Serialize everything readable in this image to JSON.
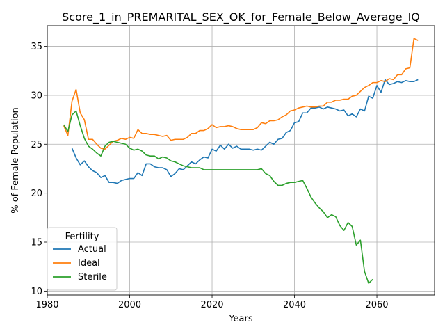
{
  "chart_data": {
    "type": "line",
    "title": "Score_1_in_PREMARITAL_SEX_OK_for_Female_Below_Average_IQ",
    "xlabel": "Years",
    "ylabel": "% of Female Population",
    "xlim": [
      1980,
      2074
    ],
    "ylim": [
      9.6,
      37.1
    ],
    "xticks": [
      1980,
      2000,
      2020,
      2040,
      2060
    ],
    "yticks": [
      10,
      15,
      20,
      25,
      30,
      35
    ],
    "grid": true,
    "legend": {
      "title": "Fertility",
      "placement": "lower-left"
    },
    "series": [
      {
        "name": "Actual",
        "color": "#1f77b4",
        "points": [
          [
            1986,
            24.6
          ],
          [
            1987,
            23.6
          ],
          [
            1988,
            22.9
          ],
          [
            1989,
            23.3
          ],
          [
            1990,
            22.7
          ],
          [
            1991,
            22.3
          ],
          [
            1992,
            22.1
          ],
          [
            1993,
            21.6
          ],
          [
            1994,
            21.8
          ],
          [
            1995,
            21.1
          ],
          [
            1996,
            21.1
          ],
          [
            1997,
            21.0
          ],
          [
            1998,
            21.3
          ],
          [
            1999,
            21.4
          ],
          [
            2000,
            21.5
          ],
          [
            2001,
            21.5
          ],
          [
            2002,
            22.1
          ],
          [
            2003,
            21.8
          ],
          [
            2004,
            23.0
          ],
          [
            2005,
            23.0
          ],
          [
            2006,
            22.7
          ],
          [
            2007,
            22.6
          ],
          [
            2008,
            22.6
          ],
          [
            2009,
            22.4
          ],
          [
            2010,
            21.7
          ],
          [
            2011,
            22.0
          ],
          [
            2012,
            22.5
          ],
          [
            2013,
            22.4
          ],
          [
            2014,
            22.8
          ],
          [
            2015,
            23.2
          ],
          [
            2016,
            23.0
          ],
          [
            2017,
            23.4
          ],
          [
            2018,
            23.7
          ],
          [
            2019,
            23.6
          ],
          [
            2020,
            24.5
          ],
          [
            2021,
            24.3
          ],
          [
            2022,
            24.9
          ],
          [
            2023,
            24.5
          ],
          [
            2024,
            25.0
          ],
          [
            2025,
            24.6
          ],
          [
            2026,
            24.8
          ],
          [
            2027,
            24.5
          ],
          [
            2028,
            24.5
          ],
          [
            2029,
            24.5
          ],
          [
            2030,
            24.4
          ],
          [
            2031,
            24.5
          ],
          [
            2032,
            24.4
          ],
          [
            2033,
            24.8
          ],
          [
            2034,
            25.2
          ],
          [
            2035,
            25.0
          ],
          [
            2036,
            25.5
          ],
          [
            2037,
            25.6
          ],
          [
            2038,
            26.2
          ],
          [
            2039,
            26.4
          ],
          [
            2040,
            27.2
          ],
          [
            2041,
            27.3
          ],
          [
            2042,
            28.2
          ],
          [
            2043,
            28.2
          ],
          [
            2044,
            28.7
          ],
          [
            2045,
            28.7
          ],
          [
            2046,
            28.8
          ],
          [
            2047,
            28.6
          ],
          [
            2048,
            28.8
          ],
          [
            2049,
            28.7
          ],
          [
            2050,
            28.6
          ],
          [
            2051,
            28.4
          ],
          [
            2052,
            28.5
          ],
          [
            2053,
            27.9
          ],
          [
            2054,
            28.1
          ],
          [
            2055,
            27.8
          ],
          [
            2056,
            28.6
          ],
          [
            2057,
            28.4
          ],
          [
            2058,
            29.9
          ],
          [
            2059,
            29.7
          ],
          [
            2060,
            31.0
          ],
          [
            2061,
            30.3
          ],
          [
            2062,
            31.6
          ],
          [
            2063,
            31.1
          ],
          [
            2064,
            31.2
          ],
          [
            2065,
            31.4
          ],
          [
            2066,
            31.3
          ],
          [
            2067,
            31.5
          ],
          [
            2068,
            31.4
          ],
          [
            2069,
            31.4
          ],
          [
            2070,
            31.6
          ]
        ]
      },
      {
        "name": "Ideal",
        "color": "#ff7f0e",
        "points": [
          [
            1984,
            26.9
          ],
          [
            1985,
            25.9
          ],
          [
            1986,
            29.4
          ],
          [
            1987,
            30.6
          ],
          [
            1988,
            28.2
          ],
          [
            1989,
            27.5
          ],
          [
            1990,
            25.5
          ],
          [
            1991,
            25.5
          ],
          [
            1992,
            25.0
          ],
          [
            1993,
            24.6
          ],
          [
            1994,
            24.5
          ],
          [
            1995,
            24.9
          ],
          [
            1996,
            25.3
          ],
          [
            1997,
            25.4
          ],
          [
            1998,
            25.6
          ],
          [
            1999,
            25.5
          ],
          [
            2000,
            25.7
          ],
          [
            2001,
            25.6
          ],
          [
            2002,
            26.5
          ],
          [
            2003,
            26.1
          ],
          [
            2004,
            26.1
          ],
          [
            2005,
            26.0
          ],
          [
            2006,
            26.0
          ],
          [
            2007,
            25.9
          ],
          [
            2008,
            25.8
          ],
          [
            2009,
            25.9
          ],
          [
            2010,
            25.4
          ],
          [
            2011,
            25.5
          ],
          [
            2012,
            25.5
          ],
          [
            2013,
            25.5
          ],
          [
            2014,
            25.7
          ],
          [
            2015,
            26.1
          ],
          [
            2016,
            26.1
          ],
          [
            2017,
            26.4
          ],
          [
            2018,
            26.4
          ],
          [
            2019,
            26.6
          ],
          [
            2020,
            27.0
          ],
          [
            2021,
            26.7
          ],
          [
            2022,
            26.8
          ],
          [
            2023,
            26.8
          ],
          [
            2024,
            26.9
          ],
          [
            2025,
            26.8
          ],
          [
            2026,
            26.6
          ],
          [
            2027,
            26.5
          ],
          [
            2028,
            26.5
          ],
          [
            2029,
            26.5
          ],
          [
            2030,
            26.5
          ],
          [
            2031,
            26.7
          ],
          [
            2032,
            27.2
          ],
          [
            2033,
            27.1
          ],
          [
            2034,
            27.4
          ],
          [
            2035,
            27.4
          ],
          [
            2036,
            27.5
          ],
          [
            2037,
            27.8
          ],
          [
            2038,
            28.0
          ],
          [
            2039,
            28.4
          ],
          [
            2040,
            28.5
          ],
          [
            2041,
            28.7
          ],
          [
            2042,
            28.8
          ],
          [
            2043,
            28.9
          ],
          [
            2044,
            28.8
          ],
          [
            2045,
            28.8
          ],
          [
            2046,
            28.9
          ],
          [
            2047,
            28.9
          ],
          [
            2048,
            29.3
          ],
          [
            2049,
            29.3
          ],
          [
            2050,
            29.5
          ],
          [
            2051,
            29.5
          ],
          [
            2052,
            29.6
          ],
          [
            2053,
            29.6
          ],
          [
            2054,
            29.9
          ],
          [
            2055,
            30.0
          ],
          [
            2056,
            30.4
          ],
          [
            2057,
            30.8
          ],
          [
            2058,
            31.0
          ],
          [
            2059,
            31.3
          ],
          [
            2060,
            31.3
          ],
          [
            2061,
            31.5
          ],
          [
            2062,
            31.4
          ],
          [
            2063,
            31.7
          ],
          [
            2064,
            31.6
          ],
          [
            2065,
            32.1
          ],
          [
            2066,
            32.1
          ],
          [
            2067,
            32.7
          ],
          [
            2068,
            32.8
          ],
          [
            2069,
            35.8
          ],
          [
            2070,
            35.6
          ]
        ]
      },
      {
        "name": "Sterile",
        "color": "#2ca02c",
        "points": [
          [
            1984,
            27.0
          ],
          [
            1985,
            26.3
          ],
          [
            1986,
            28.0
          ],
          [
            1987,
            28.4
          ],
          [
            1988,
            26.9
          ],
          [
            1989,
            25.6
          ],
          [
            1990,
            24.8
          ],
          [
            1991,
            24.5
          ],
          [
            1992,
            24.1
          ],
          [
            1993,
            23.8
          ],
          [
            1994,
            24.8
          ],
          [
            1995,
            25.2
          ],
          [
            1996,
            25.3
          ],
          [
            1997,
            25.2
          ],
          [
            1998,
            25.1
          ],
          [
            1999,
            25.0
          ],
          [
            2000,
            24.6
          ],
          [
            2001,
            24.4
          ],
          [
            2002,
            24.5
          ],
          [
            2003,
            24.3
          ],
          [
            2004,
            23.9
          ],
          [
            2005,
            23.8
          ],
          [
            2006,
            23.8
          ],
          [
            2007,
            23.5
          ],
          [
            2008,
            23.7
          ],
          [
            2009,
            23.6
          ],
          [
            2010,
            23.3
          ],
          [
            2011,
            23.2
          ],
          [
            2012,
            23.0
          ],
          [
            2013,
            22.8
          ],
          [
            2014,
            22.7
          ],
          [
            2015,
            22.6
          ],
          [
            2016,
            22.6
          ],
          [
            2017,
            22.6
          ],
          [
            2018,
            22.4
          ],
          [
            2019,
            22.4
          ],
          [
            2020,
            22.4
          ],
          [
            2021,
            22.4
          ],
          [
            2022,
            22.4
          ],
          [
            2023,
            22.4
          ],
          [
            2024,
            22.4
          ],
          [
            2025,
            22.4
          ],
          [
            2026,
            22.4
          ],
          [
            2027,
            22.4
          ],
          [
            2028,
            22.4
          ],
          [
            2029,
            22.4
          ],
          [
            2030,
            22.4
          ],
          [
            2031,
            22.4
          ],
          [
            2032,
            22.5
          ],
          [
            2033,
            22.0
          ],
          [
            2034,
            21.8
          ],
          [
            2035,
            21.2
          ],
          [
            2036,
            20.8
          ],
          [
            2037,
            20.8
          ],
          [
            2038,
            21.0
          ],
          [
            2039,
            21.1
          ],
          [
            2040,
            21.1
          ],
          [
            2041,
            21.2
          ],
          [
            2042,
            21.3
          ],
          [
            2043,
            20.5
          ],
          [
            2044,
            19.6
          ],
          [
            2045,
            19.0
          ],
          [
            2046,
            18.5
          ],
          [
            2047,
            18.1
          ],
          [
            2048,
            17.5
          ],
          [
            2049,
            17.8
          ],
          [
            2050,
            17.6
          ],
          [
            2051,
            16.7
          ],
          [
            2052,
            16.2
          ],
          [
            2053,
            17.0
          ],
          [
            2054,
            16.6
          ],
          [
            2055,
            14.7
          ],
          [
            2056,
            15.2
          ],
          [
            2057,
            12.0
          ],
          [
            2058,
            10.8
          ],
          [
            2059,
            11.2
          ]
        ]
      }
    ]
  }
}
